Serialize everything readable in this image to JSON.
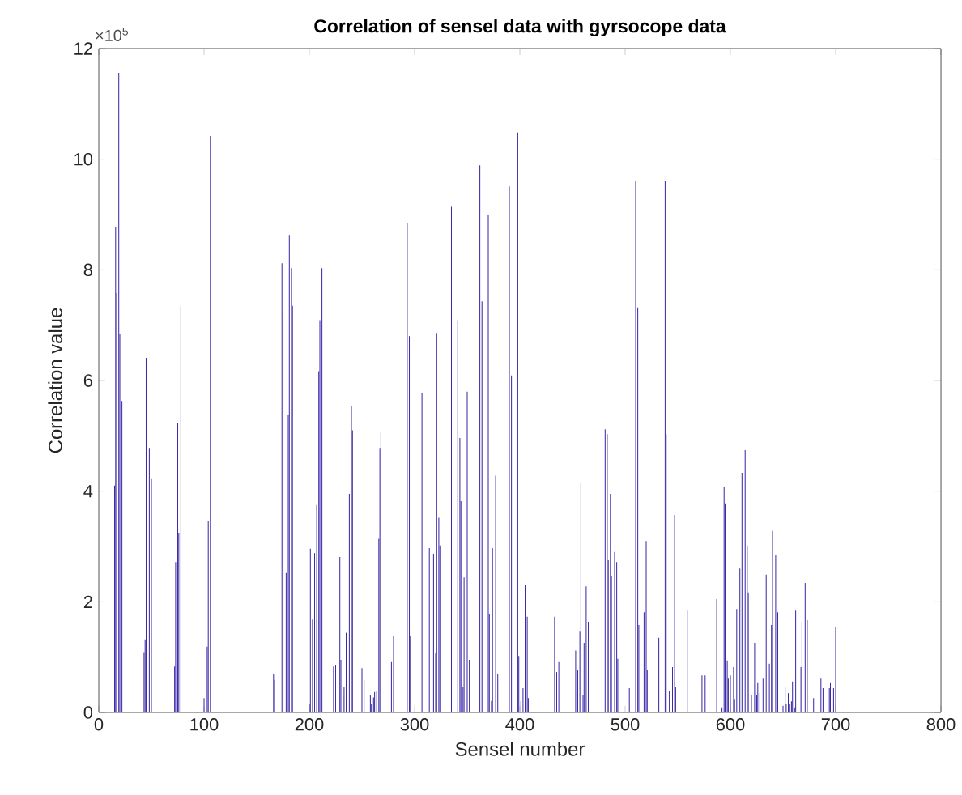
{
  "chart_data": {
    "type": "bar",
    "title": "Correlation of sensel data with gyrsocope data",
    "xlabel": "Sensel number",
    "ylabel": "Correlation value",
    "annotations": [
      "×10$^{5}$"
    ],
    "color": "#3c2ca8",
    "x": [
      15,
      16,
      17,
      19,
      20,
      22,
      43,
      44,
      45,
      48,
      50,
      72,
      73,
      75,
      76,
      78,
      100,
      103,
      104,
      106,
      166,
      167,
      174,
      175,
      178,
      180,
      181,
      183,
      184,
      195,
      200,
      201,
      203,
      205,
      207,
      209,
      210,
      212,
      223,
      225,
      229,
      230,
      232,
      233,
      235,
      238,
      240,
      241,
      250,
      252,
      258,
      259,
      261,
      262,
      264,
      266,
      267,
      268,
      278,
      280,
      293,
      295,
      296,
      307,
      314,
      318,
      320,
      321,
      323,
      324,
      335,
      341,
      343,
      344,
      346,
      347,
      350,
      352,
      362,
      364,
      370,
      371,
      373,
      374,
      377,
      379,
      390,
      392,
      398,
      399,
      401,
      403,
      405,
      407,
      408,
      433,
      435,
      437,
      453,
      455,
      457,
      458,
      460,
      461,
      463,
      465,
      481,
      483,
      484,
      486,
      487,
      490,
      492,
      493,
      504,
      510,
      512,
      513,
      515,
      518,
      520,
      521,
      532,
      538,
      539,
      542,
      545,
      547,
      548,
      559,
      573,
      575,
      576,
      587,
      592,
      594,
      595,
      597,
      598,
      600,
      603,
      604,
      606,
      609,
      611,
      614,
      616,
      617,
      620,
      623,
      625,
      626,
      628,
      631,
      634,
      637,
      639,
      640,
      643,
      645,
      650,
      652,
      653,
      655,
      656,
      658,
      659,
      661,
      662,
      667,
      668,
      671,
      673,
      679,
      686,
      688,
      694,
      695,
      698,
      700
    ],
    "values": [
      4.1,
      8.78,
      7.58,
      11.56,
      6.85,
      5.63,
      1.09,
      1.32,
      6.41,
      4.78,
      4.22,
      0.83,
      2.72,
      5.24,
      3.25,
      7.35,
      0.26,
      1.19,
      3.46,
      10.42,
      0.7,
      0.59,
      8.12,
      7.21,
      2.52,
      5.37,
      8.63,
      8.03,
      7.35,
      0.76,
      0.15,
      2.96,
      1.68,
      2.88,
      3.75,
      6.17,
      7.09,
      8.03,
      0.83,
      0.85,
      2.81,
      0.95,
      0.31,
      0.47,
      1.44,
      3.95,
      5.54,
      5.1,
      0.8,
      0.59,
      0.32,
      0.15,
      0.27,
      0.37,
      0.39,
      3.14,
      4.78,
      5.07,
      0.91,
      1.39,
      8.85,
      6.8,
      1.39,
      5.78,
      2.97,
      2.87,
      1.07,
      6.86,
      3.52,
      3.02,
      9.14,
      7.09,
      4.96,
      3.82,
      0.46,
      2.44,
      5.8,
      0.95,
      9.89,
      7.43,
      9.0,
      1.77,
      0.21,
      2.97,
      4.28,
      0.7,
      9.51,
      6.09,
      10.48,
      1.02,
      0.21,
      0.44,
      2.31,
      1.73,
      0.26,
      1.73,
      0.73,
      0.91,
      1.12,
      0.76,
      1.46,
      4.16,
      0.32,
      1.26,
      2.28,
      1.64,
      5.12,
      5.03,
      2.75,
      3.95,
      2.46,
      2.9,
      2.72,
      0.97,
      0.44,
      9.6,
      7.32,
      1.58,
      1.46,
      1.81,
      3.1,
      0.76,
      1.35,
      9.6,
      5.03,
      0.38,
      0.82,
      3.57,
      0.47,
      1.84,
      0.67,
      1.46,
      0.67,
      2.05,
      0.09,
      4.07,
      3.78,
      0.94,
      0.61,
      0.67,
      0.82,
      0.23,
      1.87,
      2.6,
      4.33,
      4.74,
      3.01,
      2.17,
      0.32,
      1.26,
      0.32,
      0.53,
      0.35,
      0.61,
      2.49,
      0.88,
      1.58,
      3.28,
      2.84,
      1.81,
      0.12,
      0.47,
      0.15,
      0.35,
      0.15,
      0.2,
      0.56,
      0.09,
      1.84,
      0.82,
      1.64,
      2.34,
      1.67,
      0.26,
      0.61,
      0.44,
      0.44,
      0.53,
      0.44,
      1.55
    ],
    "xlim": [
      0,
      800
    ],
    "xticks": [
      0,
      100,
      200,
      300,
      400,
      500,
      600,
      700,
      800
    ],
    "ylim": [
      0,
      12
    ],
    "yticks": [
      0,
      2,
      4,
      6,
      8,
      10,
      12
    ]
  }
}
